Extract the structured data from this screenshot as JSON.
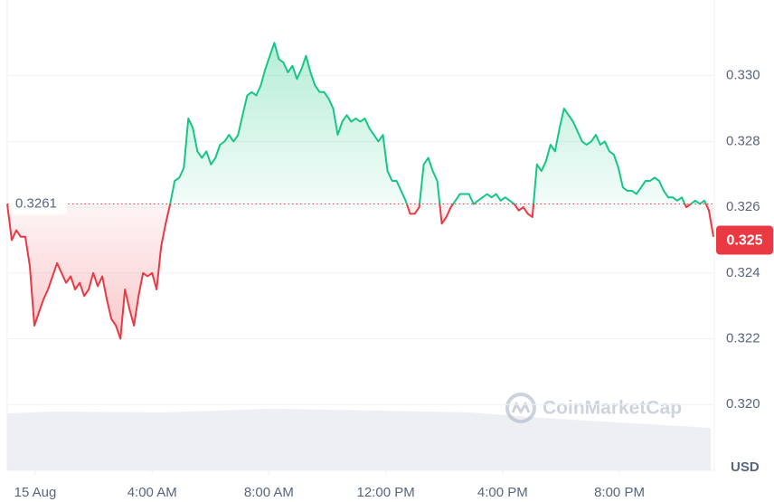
{
  "chart_data": {
    "type": "line",
    "unit": "USD",
    "watermark": "CoinMarketCap",
    "baseline": 0.3261,
    "last_price": 0.325,
    "xlim": [
      -0.96,
      23.25
    ],
    "xticks": [
      {
        "value": 0,
        "label": "15 Aug"
      },
      {
        "value": 4,
        "label": "4:00 AM"
      },
      {
        "value": 8,
        "label": "8:00 AM"
      },
      {
        "value": 12,
        "label": "12:00 PM"
      },
      {
        "value": 16,
        "label": "4:00 PM"
      },
      {
        "value": 20,
        "label": "8:00 PM"
      }
    ],
    "ylim": [
      0.318,
      0.3323
    ],
    "yticks": [
      {
        "value": 0.32,
        "label": "0.320"
      },
      0.322,
      0.324,
      0.326,
      0.328,
      {
        "value": 0.33,
        "label": "0.330"
      }
    ],
    "grid": true,
    "up_color": "#16c784",
    "down_color": "#ea3943",
    "x": [
      -0.96,
      -0.805,
      -0.65,
      -0.495,
      -0.34,
      -0.185,
      -0.03,
      0.125,
      0.28,
      0.435,
      0.59,
      0.745,
      0.9,
      1.055,
      1.21,
      1.365,
      1.52,
      1.675,
      1.83,
      1.985,
      2.14,
      2.295,
      2.45,
      2.605,
      2.76,
      2.915,
      3.07,
      3.225,
      3.38,
      3.535,
      3.69,
      3.845,
      4,
      4.155,
      4.31,
      4.465,
      4.62,
      4.775,
      4.93,
      5.085,
      5.24,
      5.395,
      5.55,
      5.705,
      5.86,
      6.015,
      6.17,
      6.325,
      6.48,
      6.635,
      6.79,
      6.945,
      7.1,
      7.255,
      7.41,
      7.565,
      7.72,
      7.875,
      8.03,
      8.185,
      8.34,
      8.495,
      8.65,
      8.805,
      8.96,
      9.115,
      9.27,
      9.425,
      9.58,
      9.735,
      9.89,
      10.045,
      10.2,
      10.355,
      10.51,
      10.665,
      10.82,
      10.975,
      11.13,
      11.285,
      11.44,
      11.595,
      11.75,
      11.905,
      12.06,
      12.215,
      12.37,
      12.525,
      12.68,
      12.835,
      12.99,
      13.145,
      13.3,
      13.455,
      13.61,
      13.765,
      13.92,
      14.075,
      14.23,
      14.385,
      14.54,
      14.695,
      14.85,
      15.005,
      15.16,
      15.315,
      15.47,
      15.625,
      15.78,
      15.935,
      16.09,
      16.245,
      16.4,
      16.555,
      16.71,
      16.865,
      17.02,
      17.175,
      17.33,
      17.485,
      17.64,
      17.795,
      17.95,
      18.105,
      18.26,
      18.415,
      18.57,
      18.725,
      18.88,
      19.035,
      19.19,
      19.345,
      19.5,
      19.655,
      19.81,
      19.965,
      20.12,
      20.275,
      20.43,
      20.585,
      20.74,
      20.895,
      21.05,
      21.205,
      21.36,
      21.515,
      21.67,
      21.825,
      21.98,
      22.135,
      22.29,
      22.445,
      22.6,
      22.755,
      22.91,
      23.065,
      23.22
    ],
    "values": [
      0.3261,
      0.325,
      0.3253,
      0.3251,
      0.3251,
      0.3242,
      0.3224,
      0.3228,
      0.3232,
      0.3235,
      0.3239,
      0.3243,
      0.324,
      0.3237,
      0.3239,
      0.3235,
      0.3237,
      0.3233,
      0.3235,
      0.324,
      0.3236,
      0.3239,
      0.3232,
      0.3226,
      0.3224,
      0.322,
      0.3235,
      0.3229,
      0.3224,
      0.3233,
      0.324,
      0.3239,
      0.324,
      0.3235,
      0.3248,
      0.3255,
      0.3261,
      0.3268,
      0.3269,
      0.3272,
      0.3287,
      0.3284,
      0.3277,
      0.3275,
      0.3277,
      0.3273,
      0.3275,
      0.3279,
      0.328,
      0.3282,
      0.328,
      0.3282,
      0.3288,
      0.3294,
      0.3295,
      0.3294,
      0.3297,
      0.3302,
      0.3306,
      0.331,
      0.3305,
      0.3304,
      0.3301,
      0.3303,
      0.3299,
      0.3302,
      0.3306,
      0.3301,
      0.3297,
      0.3295,
      0.3295,
      0.3293,
      0.329,
      0.3282,
      0.3286,
      0.3288,
      0.3286,
      0.3287,
      0.3286,
      0.3287,
      0.3284,
      0.3282,
      0.328,
      0.3282,
      0.3271,
      0.3268,
      0.3268,
      0.3265,
      0.3262,
      0.3258,
      0.3258,
      0.326,
      0.3273,
      0.3275,
      0.3271,
      0.3268,
      0.3255,
      0.3257,
      0.326,
      0.3262,
      0.3264,
      0.3264,
      0.3264,
      0.3261,
      0.3262,
      0.3263,
      0.3264,
      0.3263,
      0.3264,
      0.3262,
      0.3263,
      0.3262,
      0.3261,
      0.3259,
      0.326,
      0.3258,
      0.3257,
      0.3273,
      0.3271,
      0.3274,
      0.3279,
      0.3277,
      0.3284,
      0.329,
      0.3288,
      0.3286,
      0.3283,
      0.328,
      0.3279,
      0.328,
      0.3282,
      0.3279,
      0.328,
      0.3277,
      0.3276,
      0.3272,
      0.3266,
      0.3265,
      0.3265,
      0.3264,
      0.3266,
      0.3268,
      0.3268,
      0.3269,
      0.3268,
      0.3265,
      0.3263,
      0.3263,
      0.3262,
      0.3263,
      0.326,
      0.3261,
      0.3262,
      0.3261,
      0.3262,
      0.3259,
      0.3251
    ]
  }
}
